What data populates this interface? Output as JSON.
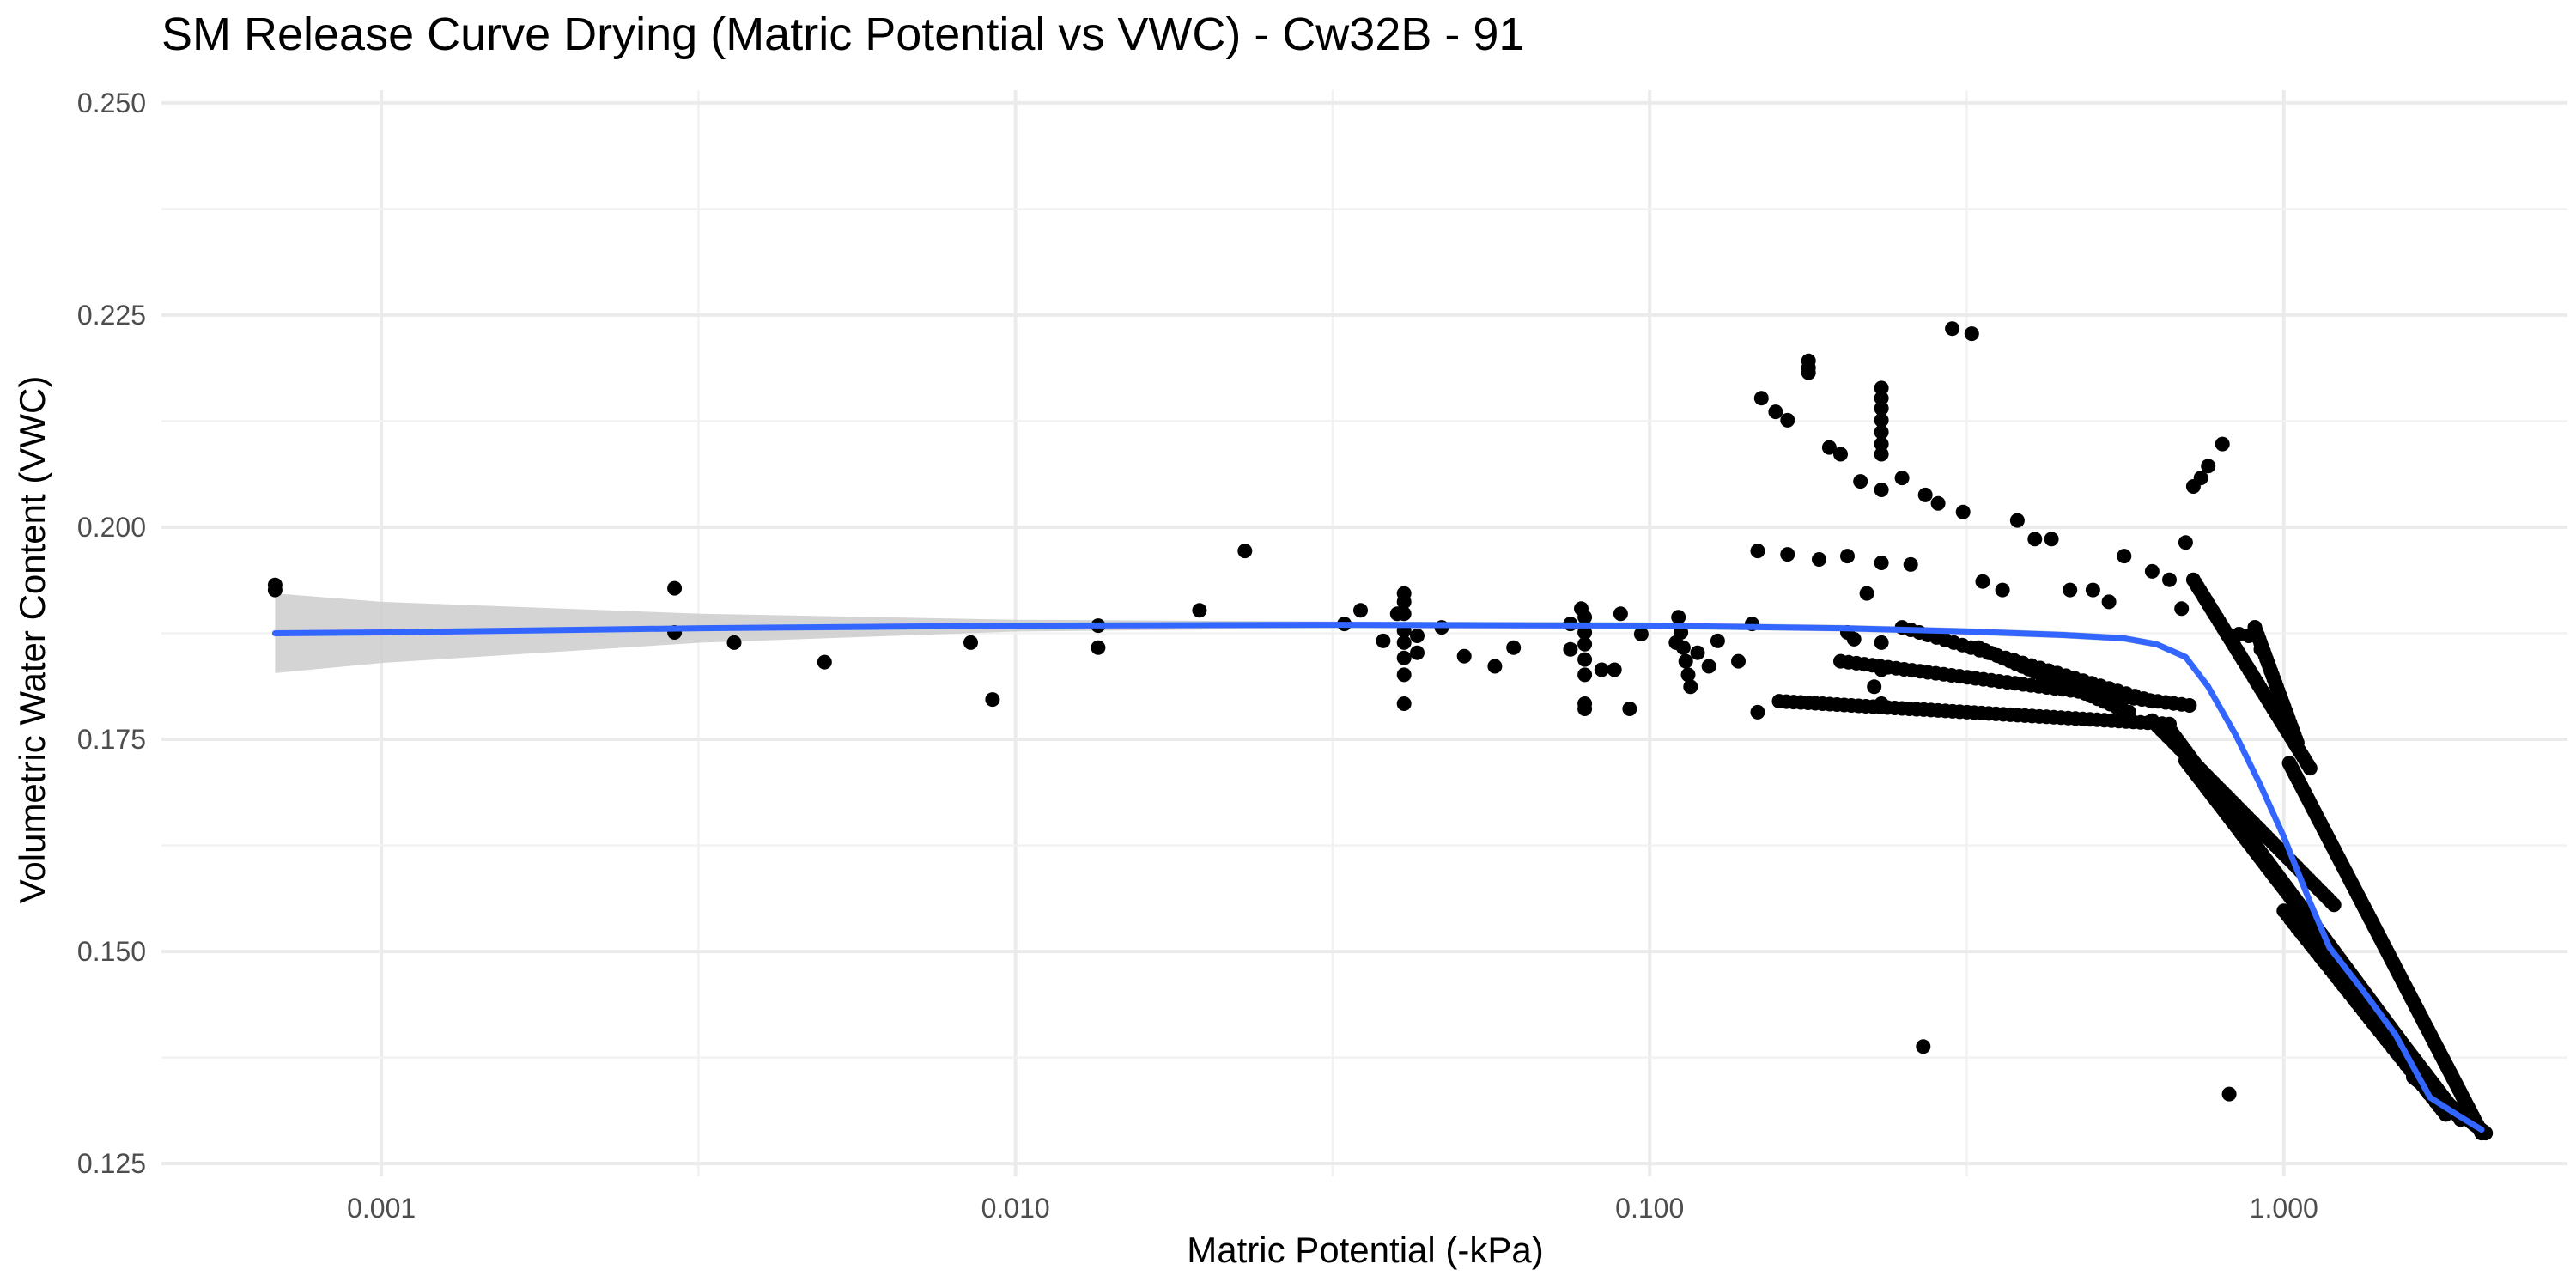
{
  "chart_data": {
    "type": "scatter",
    "title": "SM Release Curve Drying (Matric Potential vs VWC) - Cw32B - 91",
    "xlabel": "Matric Potential (-kPa)",
    "ylabel": "Volumetric Water Content (VWC)",
    "x_scale": "log10",
    "xlim": [
      0.00045,
      2.8
    ],
    "ylim": [
      0.1235,
      0.2515
    ],
    "x_ticks": [
      0.001,
      0.01,
      0.1,
      1.0
    ],
    "x_tick_labels": [
      "0.001",
      "0.010",
      "0.100",
      "1.000"
    ],
    "y_ticks": [
      0.125,
      0.15,
      0.175,
      0.2,
      0.225,
      0.25
    ],
    "y_tick_labels": [
      "0.125",
      "0.150",
      "0.175",
      "0.200",
      "0.225",
      "0.250"
    ],
    "grid": true,
    "colors": {
      "points": "#000000",
      "fit_line": "#3366ff",
      "confidence_band": "#cccccc"
    },
    "series": [
      {
        "type": "scatter",
        "points": [
          [
            0.00068,
            0.1932
          ],
          [
            0.00068,
            0.1926
          ],
          [
            0.0029,
            0.1928
          ],
          [
            0.0029,
            0.1876
          ],
          [
            0.0036,
            0.1864
          ],
          [
            0.005,
            0.1841
          ],
          [
            0.0085,
            0.1864
          ],
          [
            0.0092,
            0.1797
          ],
          [
            0.0135,
            0.1884
          ],
          [
            0.0135,
            0.1858
          ],
          [
            0.0195,
            0.1902
          ],
          [
            0.023,
            0.1972
          ],
          [
            0.033,
            0.1886
          ],
          [
            0.035,
            0.1902
          ],
          [
            0.038,
            0.1866
          ],
          [
            0.04,
            0.1898
          ],
          [
            0.041,
            0.1922
          ],
          [
            0.041,
            0.1912
          ],
          [
            0.041,
            0.1898
          ],
          [
            0.041,
            0.1878
          ],
          [
            0.041,
            0.1864
          ],
          [
            0.041,
            0.1846
          ],
          [
            0.041,
            0.1826
          ],
          [
            0.041,
            0.1792
          ],
          [
            0.043,
            0.1872
          ],
          [
            0.043,
            0.1852
          ],
          [
            0.047,
            0.1882
          ],
          [
            0.051,
            0.1848
          ],
          [
            0.057,
            0.1836
          ],
          [
            0.061,
            0.1858
          ],
          [
            0.075,
            0.1886
          ],
          [
            0.075,
            0.1856
          ],
          [
            0.078,
            0.1904
          ],
          [
            0.079,
            0.1894
          ],
          [
            0.079,
            0.1876
          ],
          [
            0.079,
            0.1862
          ],
          [
            0.079,
            0.1844
          ],
          [
            0.079,
            0.1826
          ],
          [
            0.079,
            0.1792
          ],
          [
            0.079,
            0.1786
          ],
          [
            0.084,
            0.1832
          ],
          [
            0.088,
            0.1832
          ],
          [
            0.09,
            0.1898
          ],
          [
            0.093,
            0.1786
          ],
          [
            0.097,
            0.1874
          ],
          [
            0.11,
            0.1864
          ],
          [
            0.111,
            0.1894
          ],
          [
            0.112,
            0.1876
          ],
          [
            0.113,
            0.1858
          ],
          [
            0.114,
            0.1842
          ],
          [
            0.115,
            0.1826
          ],
          [
            0.116,
            0.1812
          ],
          [
            0.119,
            0.1852
          ],
          [
            0.124,
            0.1836
          ],
          [
            0.128,
            0.1866
          ],
          [
            0.138,
            0.1842
          ],
          [
            0.145,
            0.1886
          ],
          [
            0.148,
            0.1972
          ],
          [
            0.148,
            0.1782
          ],
          [
            0.15,
            0.2152
          ],
          [
            0.158,
            0.2136
          ],
          [
            0.165,
            0.2126
          ],
          [
            0.165,
            0.1968
          ],
          [
            0.178,
            0.2196
          ],
          [
            0.178,
            0.2188
          ],
          [
            0.178,
            0.2182
          ],
          [
            0.185,
            0.1962
          ],
          [
            0.192,
            0.2094
          ],
          [
            0.2,
            0.2086
          ],
          [
            0.205,
            0.1966
          ],
          [
            0.205,
            0.1876
          ],
          [
            0.21,
            0.1868
          ],
          [
            0.215,
            0.2054
          ],
          [
            0.22,
            0.1922
          ],
          [
            0.226,
            0.1812
          ],
          [
            0.232,
            0.2164
          ],
          [
            0.232,
            0.2152
          ],
          [
            0.232,
            0.214
          ],
          [
            0.232,
            0.2126
          ],
          [
            0.232,
            0.2112
          ],
          [
            0.232,
            0.2098
          ],
          [
            0.232,
            0.2086
          ],
          [
            0.232,
            0.2044
          ],
          [
            0.232,
            0.1958
          ],
          [
            0.232,
            0.1864
          ],
          [
            0.232,
            0.1832
          ],
          [
            0.232,
            0.1792
          ],
          [
            0.25,
            0.2058
          ],
          [
            0.258,
            0.1956
          ],
          [
            0.27,
            0.1388
          ],
          [
            0.272,
            0.2038
          ],
          [
            0.285,
            0.2028
          ],
          [
            0.3,
            0.2234
          ],
          [
            0.312,
            0.2018
          ],
          [
            0.322,
            0.2228
          ],
          [
            0.335,
            0.1936
          ],
          [
            0.36,
            0.1926
          ],
          [
            0.38,
            0.2008
          ],
          [
            0.405,
            0.1986
          ],
          [
            0.43,
            0.1986
          ],
          [
            0.46,
            0.1926
          ],
          [
            0.5,
            0.1926
          ],
          [
            0.53,
            0.1912
          ],
          [
            0.56,
            0.1966
          ],
          [
            0.62,
            0.1948
          ],
          [
            0.66,
            0.1938
          ],
          [
            0.69,
            0.1904
          ],
          [
            0.7,
            0.1982
          ],
          [
            0.72,
            0.2048
          ],
          [
            0.74,
            0.2058
          ],
          [
            0.76,
            0.2072
          ],
          [
            0.8,
            0.2098
          ],
          [
            0.82,
            0.1332
          ],
          [
            0.85,
            0.1874
          ],
          [
            0.88,
            0.1872
          ],
          [
            0.9,
            0.1882
          ],
          [
            0.92,
            0.1856
          ]
        ],
        "dense_bands": [
          {
            "x_start": 0.16,
            "x_end": 0.66,
            "y_start": 0.1795,
            "y_end": 0.1768,
            "count": 55
          },
          {
            "x_start": 0.2,
            "x_end": 0.71,
            "y_start": 0.1842,
            "y_end": 0.179,
            "count": 45
          },
          {
            "x_start": 0.25,
            "x_end": 0.62,
            "y_start": 0.1882,
            "y_end": 0.1795,
            "count": 30
          },
          {
            "x_start": 0.33,
            "x_end": 0.57,
            "y_start": 0.1858,
            "y_end": 0.1782,
            "count": 25
          },
          {
            "x_start": 0.66,
            "x_end": 1.75,
            "y_start": 0.1762,
            "y_end": 0.1335,
            "count": 130
          },
          {
            "x_start": 0.62,
            "x_end": 1.2,
            "y_start": 0.1772,
            "y_end": 0.1555,
            "count": 60
          },
          {
            "x_start": 0.7,
            "x_end": 1.9,
            "y_start": 0.1725,
            "y_end": 0.1302,
            "count": 120
          },
          {
            "x_start": 0.72,
            "x_end": 1.1,
            "y_start": 0.1938,
            "y_end": 0.1716,
            "count": 55
          },
          {
            "x_start": 0.9,
            "x_end": 1.05,
            "y_start": 0.1882,
            "y_end": 0.1746,
            "count": 30
          },
          {
            "x_start": 1.02,
            "x_end": 2.05,
            "y_start": 0.1722,
            "y_end": 0.1286,
            "count": 130
          },
          {
            "x_start": 1.0,
            "x_end": 1.8,
            "y_start": 0.1548,
            "y_end": 0.1308,
            "count": 50
          },
          {
            "x_start": 1.6,
            "x_end": 2.08,
            "y_start": 0.1352,
            "y_end": 0.1286,
            "count": 40
          }
        ]
      },
      {
        "type": "line",
        "fit": "smooth",
        "x": [
          0.00068,
          0.001,
          0.0032,
          0.01,
          0.032,
          0.1,
          0.2,
          0.32,
          0.45,
          0.56,
          0.63,
          0.7,
          0.76,
          0.84,
          0.92,
          1.0,
          1.1,
          1.18,
          1.32,
          1.5,
          1.7,
          1.9,
          2.05
        ],
        "y": [
          0.1875,
          0.1876,
          0.1881,
          0.1884,
          0.1885,
          0.1884,
          0.1881,
          0.1877,
          0.1873,
          0.1869,
          0.1862,
          0.1847,
          0.1812,
          0.1755,
          0.1695,
          0.1635,
          0.1558,
          0.1505,
          0.1458,
          0.1402,
          0.1328,
          0.1305,
          0.129
        ],
        "band_upper": [
          0.1922,
          0.1912,
          0.1898,
          0.1891,
          0.1889,
          0.1888,
          0.1885,
          0.1881,
          0.1877,
          0.1873,
          0.1866,
          0.1851,
          0.1816,
          0.1759,
          0.1699,
          0.1639,
          0.1562,
          0.1509,
          0.1462,
          0.1406,
          0.1334,
          0.1312,
          0.1298
        ],
        "band_lower": [
          0.1828,
          0.184,
          0.1864,
          0.1877,
          0.1881,
          0.188,
          0.1877,
          0.1873,
          0.1869,
          0.1865,
          0.1858,
          0.1843,
          0.1808,
          0.1751,
          0.1691,
          0.1631,
          0.1554,
          0.1501,
          0.1454,
          0.1398,
          0.1322,
          0.1298,
          0.1282
        ]
      }
    ]
  }
}
